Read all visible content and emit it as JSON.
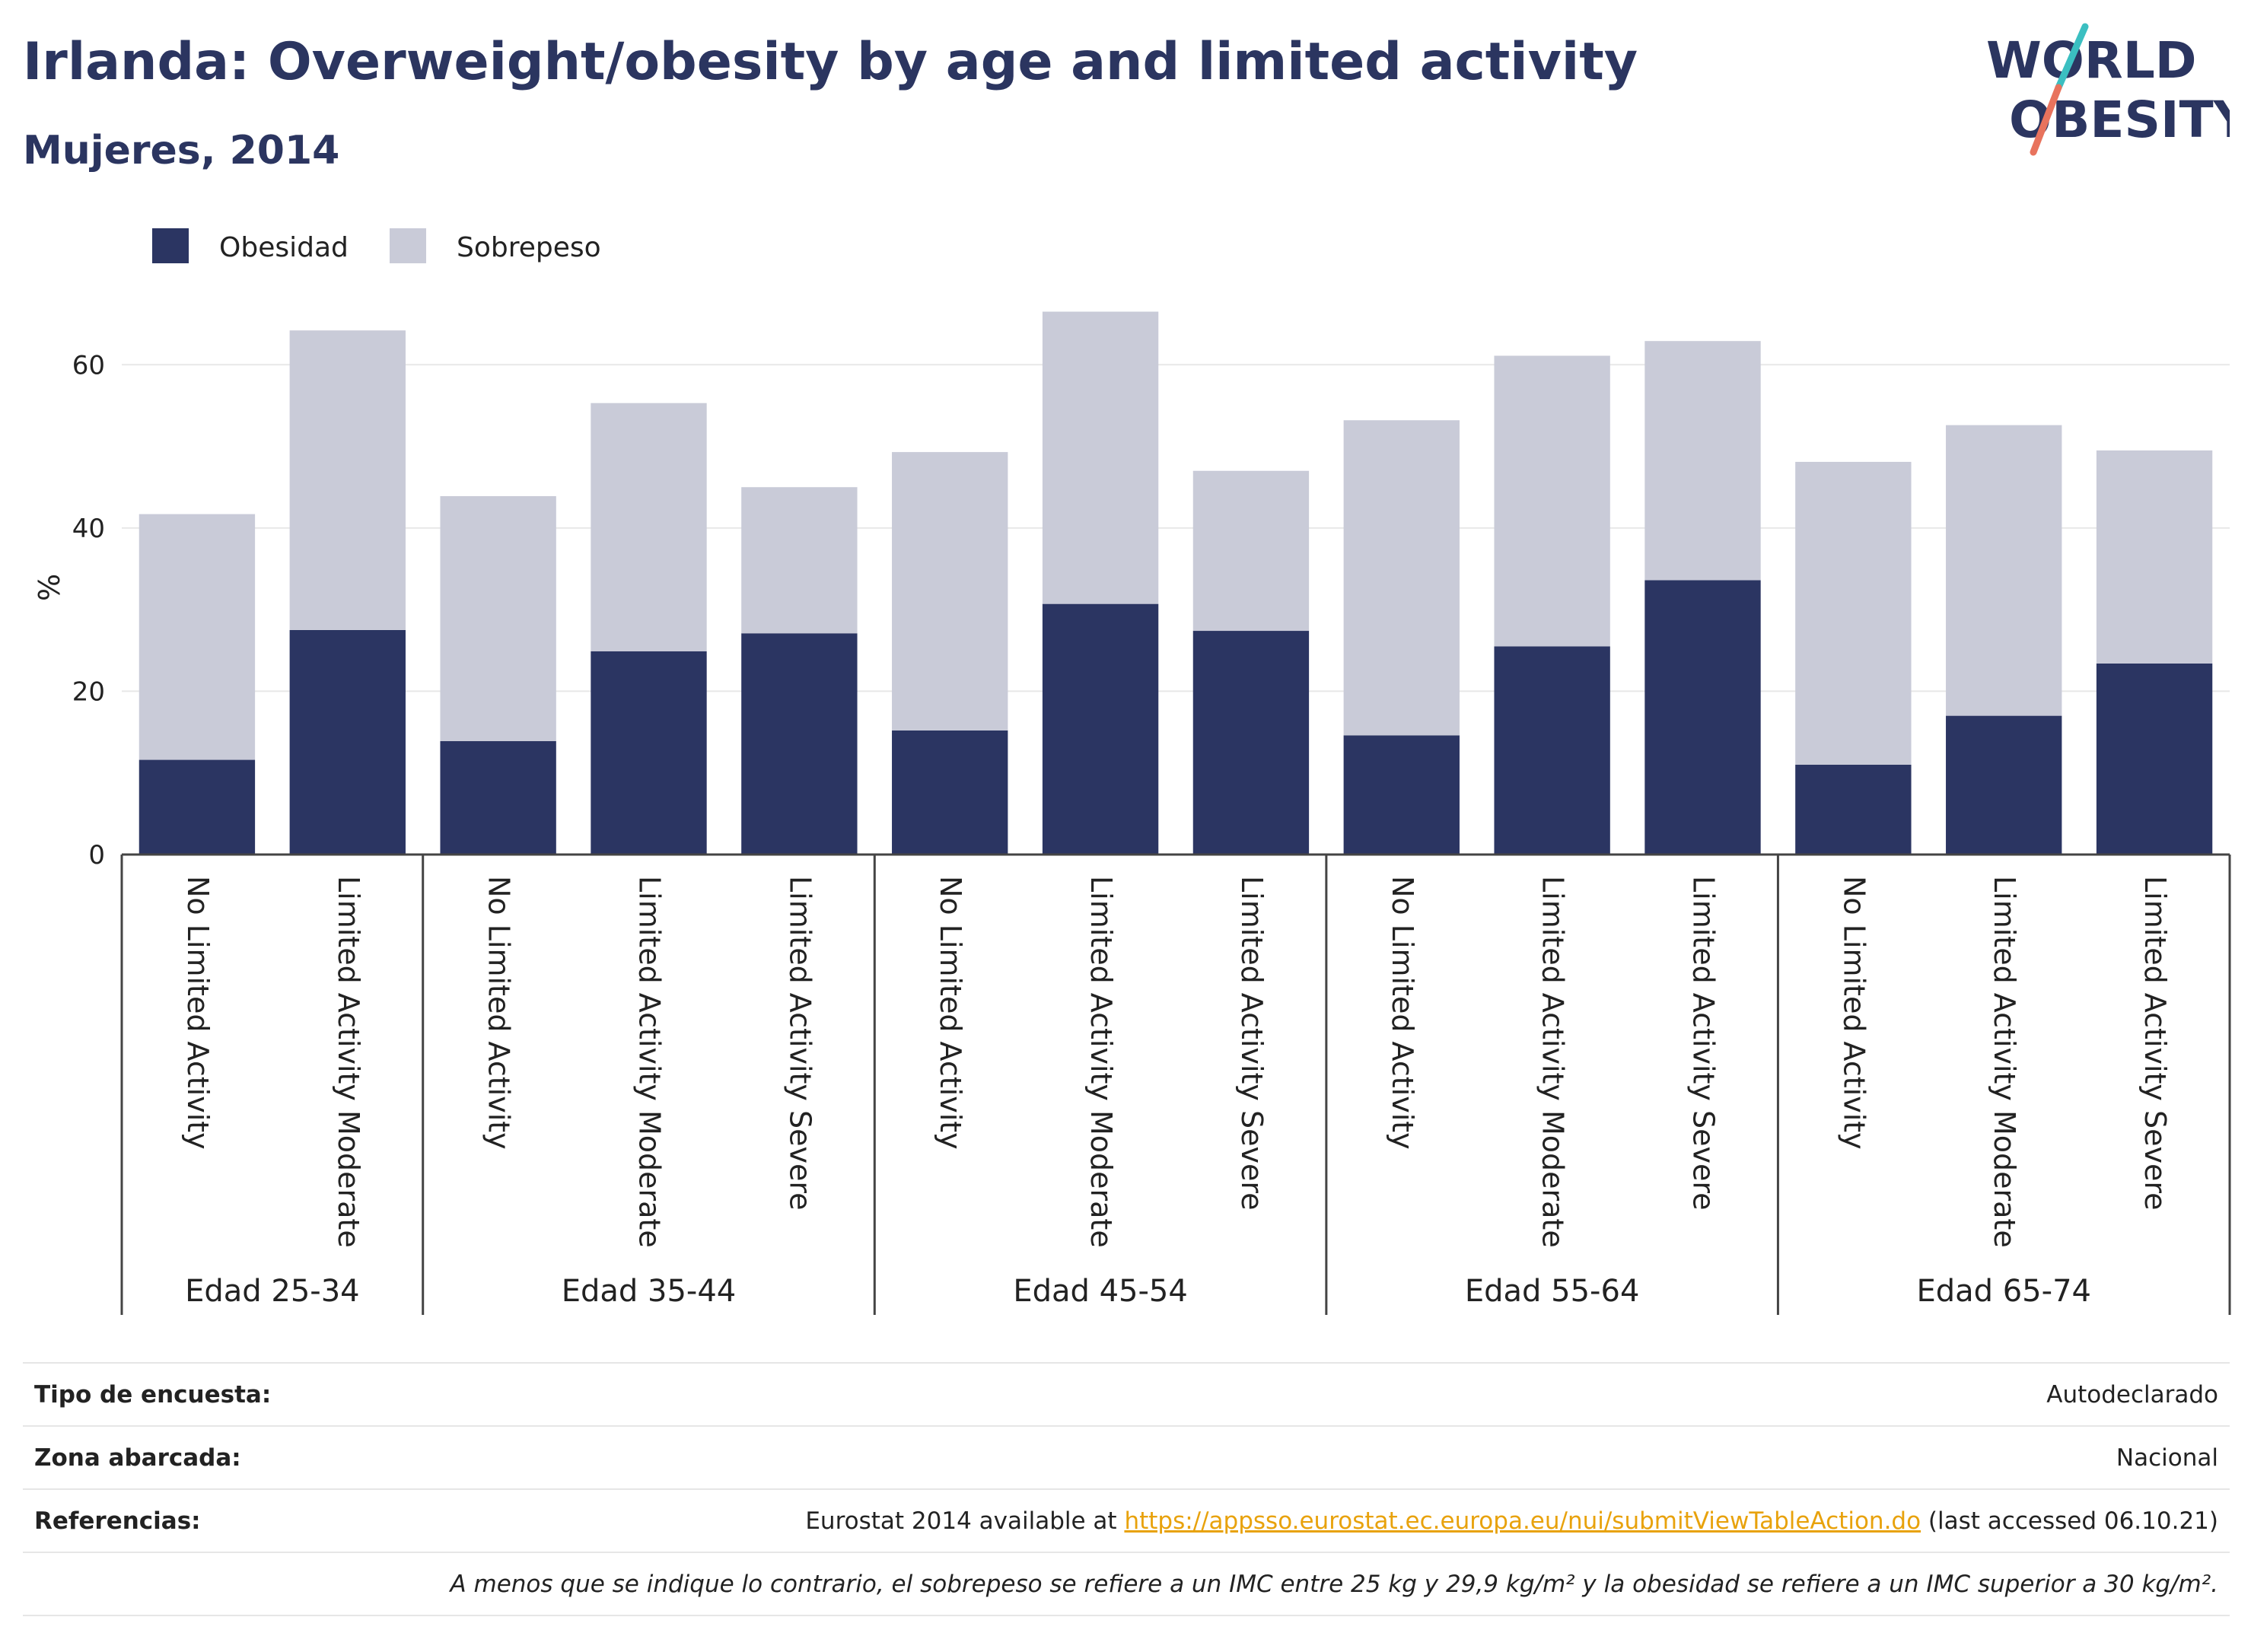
{
  "header": {
    "title": "Irlanda: Overweight/obesity by age and limited activity",
    "subtitle": "Mujeres, 2014"
  },
  "logo": {
    "line1": "WORLD",
    "line2": "OBESITY"
  },
  "colors": {
    "obesity": "#2b3562",
    "overweight": "#c9cbd8",
    "title": "#2b3560",
    "link": "#e8a20c",
    "logo_teal": "#3bbfc1",
    "logo_coral": "#e8735d"
  },
  "chart_data": {
    "type": "bar",
    "stacked": true,
    "ylabel": "%",
    "ylim": [
      0,
      70
    ],
    "yticks": [
      0,
      20,
      40,
      60
    ],
    "grid": true,
    "legend_position": "top-left",
    "groups": [
      {
        "label": "Edad 25-34",
        "categories": [
          "No Limited Activity",
          "Limited Activity Moderate"
        ]
      },
      {
        "label": "Edad 35-44",
        "categories": [
          "No Limited Activity",
          "Limited Activity Moderate",
          "Limited Activity Severe"
        ]
      },
      {
        "label": "Edad 45-54",
        "categories": [
          "No Limited Activity",
          "Limited Activity Moderate",
          "Limited Activity Severe"
        ]
      },
      {
        "label": "Edad 55-64",
        "categories": [
          "No Limited Activity",
          "Limited Activity Moderate",
          "Limited Activity Severe"
        ]
      },
      {
        "label": "Edad 65-74",
        "categories": [
          "No Limited Activity",
          "Limited Activity Moderate",
          "Limited Activity Severe"
        ]
      }
    ],
    "series": [
      {
        "name": "Obesidad",
        "values": [
          11.6,
          27.5,
          13.9,
          24.9,
          27.1,
          15.2,
          30.7,
          27.4,
          14.6,
          25.5,
          33.6,
          11.0,
          17.0,
          23.4
        ]
      },
      {
        "name": "Sobrepeso",
        "values": [
          30.1,
          36.7,
          30.0,
          30.4,
          17.9,
          34.1,
          35.8,
          19.6,
          38.6,
          35.6,
          29.3,
          37.1,
          35.6,
          26.1
        ]
      }
    ]
  },
  "info": {
    "survey_type_label": "Tipo de encuesta:",
    "survey_type_value": "Autodeclarado",
    "area_label": "Zona abarcada:",
    "area_value": "Nacional",
    "refs_label": "Referencias:",
    "refs_prefix": "Eurostat 2014 available at ",
    "refs_link": "https://appsso.eurostat.ec.europa.eu/nui/submitViewTableAction.do",
    "refs_suffix": " (last accessed 06.10.21)",
    "note": "A menos que se indique lo contrario, el sobrepeso se refiere a un IMC entre 25 kg y 29,9 kg/m² y la obesidad se refiere a un IMC superior a 30 kg/m²."
  }
}
